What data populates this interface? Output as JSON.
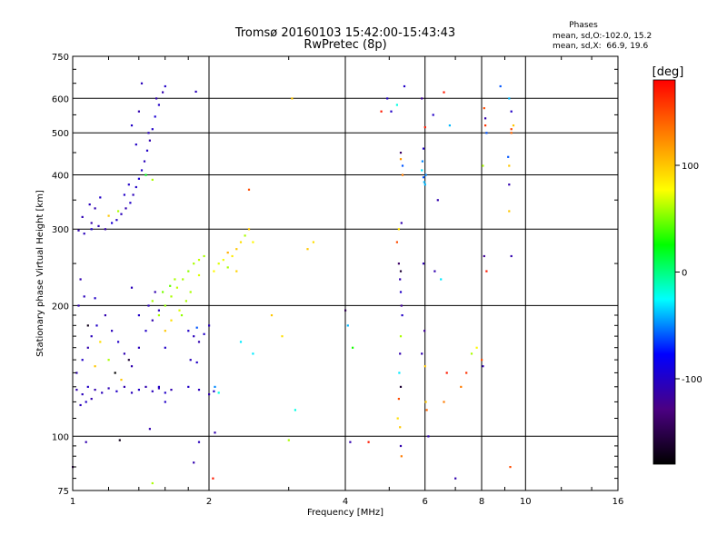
{
  "header": {
    "title_line1": "Tromsø 20160103 15:42:00-15:43:43",
    "title_line2": "RwPretec (8p)"
  },
  "stats": {
    "heading": "Phases",
    "line1": "mean, sd,O:-102.0, 15.2",
    "line2": "mean, sd,X:  66.9, 19.6"
  },
  "colorbar": {
    "unit_label": "[deg]",
    "ticks": [
      {
        "value": 100,
        "label": "100"
      },
      {
        "value": 0,
        "label": "0"
      },
      {
        "value": -100,
        "label": "-100"
      }
    ],
    "range": [
      -180,
      180
    ],
    "colors": [
      "#000000",
      "#4b0082",
      "#0000ff",
      "#00ffff",
      "#00ff00",
      "#ffff00",
      "#ff8000",
      "#ff0000"
    ]
  },
  "chart_data": {
    "type": "scatter",
    "xlabel": "Frequency [MHz]",
    "ylabel": "Stationary phase Virtual Height [km]",
    "xscale": "log",
    "yscale": "log",
    "xlim": [
      1,
      16
    ],
    "ylim": [
      75,
      750
    ],
    "xticks": [
      1,
      2,
      4,
      6,
      8,
      10,
      16
    ],
    "xtick_labels": [
      "1",
      "2",
      "4",
      "6",
      "8",
      "10",
      "16"
    ],
    "yticks": [
      75,
      100,
      200,
      300,
      400,
      500,
      600,
      750
    ],
    "ytick_labels": [
      "75",
      "100",
      "200",
      "300",
      "400",
      "500",
      "600",
      "750"
    ],
    "grid": true,
    "points": [
      [
        1.03,
        298,
        -110
      ],
      [
        1.06,
        293,
        -105
      ],
      [
        1.1,
        300,
        -100
      ],
      [
        1.14,
        305,
        -108
      ],
      [
        1.18,
        300,
        -112
      ],
      [
        1.22,
        310,
        -95
      ],
      [
        1.25,
        315,
        -100
      ],
      [
        1.28,
        325,
        -105
      ],
      [
        1.31,
        335,
        -110
      ],
      [
        1.34,
        345,
        -100
      ],
      [
        1.36,
        360,
        -105
      ],
      [
        1.38,
        375,
        -100
      ],
      [
        1.4,
        392,
        -95
      ],
      [
        1.42,
        410,
        -100
      ],
      [
        1.44,
        430,
        -105
      ],
      [
        1.46,
        455,
        -100
      ],
      [
        1.48,
        480,
        -110
      ],
      [
        1.5,
        510,
        -100
      ],
      [
        1.52,
        545,
        -95
      ],
      [
        1.55,
        580,
        -100
      ],
      [
        1.58,
        620,
        -110
      ],
      [
        1.42,
        650,
        -105
      ],
      [
        1.35,
        520,
        -100
      ],
      [
        1.38,
        470,
        -100
      ],
      [
        1.45,
        400,
        20
      ],
      [
        1.5,
        390,
        60
      ],
      [
        1.12,
        335,
        -110
      ],
      [
        1.15,
        355,
        -100
      ],
      [
        1.09,
        342,
        -105
      ],
      [
        1.2,
        322,
        100
      ],
      [
        1.26,
        330,
        60
      ],
      [
        1.05,
        320,
        -108
      ],
      [
        1.1,
        310,
        -112
      ],
      [
        1.3,
        360,
        -100
      ],
      [
        1.33,
        380,
        -100
      ],
      [
        1.47,
        500,
        -105
      ],
      [
        1.53,
        600,
        -110
      ],
      [
        1.6,
        640,
        -100
      ],
      [
        1.87,
        622,
        -105
      ],
      [
        1.4,
        560,
        -110
      ],
      [
        1.02,
        128,
        -110
      ],
      [
        1.05,
        125,
        -105
      ],
      [
        1.08,
        130,
        -100
      ],
      [
        1.12,
        128,
        -110
      ],
      [
        1.16,
        126,
        -105
      ],
      [
        1.2,
        129,
        -108
      ],
      [
        1.25,
        127,
        -100
      ],
      [
        1.3,
        130,
        -110
      ],
      [
        1.35,
        126,
        -105
      ],
      [
        1.4,
        128,
        -100
      ],
      [
        1.45,
        130,
        -110
      ],
      [
        1.5,
        127,
        -105
      ],
      [
        1.55,
        129,
        -108
      ],
      [
        1.6,
        126,
        -100
      ],
      [
        1.65,
        128,
        -110
      ],
      [
        1.04,
        118,
        -105
      ],
      [
        1.07,
        120,
        -100
      ],
      [
        1.1,
        122,
        -110
      ],
      [
        1.02,
        140,
        -108
      ],
      [
        1.05,
        150,
        -100
      ],
      [
        1.08,
        160,
        -110
      ],
      [
        1.1,
        170,
        -105
      ],
      [
        1.13,
        180,
        -100
      ],
      [
        1.18,
        190,
        -110
      ],
      [
        1.22,
        175,
        -105
      ],
      [
        1.26,
        165,
        -100
      ],
      [
        1.3,
        155,
        -108
      ],
      [
        1.35,
        145,
        -110
      ],
      [
        1.4,
        160,
        -105
      ],
      [
        1.45,
        175,
        -100
      ],
      [
        1.5,
        185,
        -110
      ],
      [
        1.55,
        195,
        -105
      ],
      [
        1.6,
        160,
        -100
      ],
      [
        1.03,
        200,
        -110
      ],
      [
        1.06,
        210,
        -105
      ],
      [
        1.12,
        145,
        100
      ],
      [
        1.2,
        150,
        60
      ],
      [
        1.28,
        135,
        100
      ],
      [
        1.15,
        165,
        90
      ],
      [
        1.24,
        140,
        -180
      ],
      [
        1.33,
        150,
        -160
      ],
      [
        1.08,
        180,
        -170
      ],
      [
        1.4,
        190,
        -100
      ],
      [
        1.47,
        200,
        -105
      ],
      [
        1.52,
        215,
        -110
      ],
      [
        1.04,
        230,
        -110
      ],
      [
        1.12,
        208,
        -100
      ],
      [
        1.35,
        220,
        -105
      ],
      [
        1.6,
        120,
        -100
      ],
      [
        1.55,
        190,
        60
      ],
      [
        1.6,
        200,
        55
      ],
      [
        1.65,
        210,
        60
      ],
      [
        1.7,
        220,
        65
      ],
      [
        1.75,
        230,
        60
      ],
      [
        1.8,
        240,
        55
      ],
      [
        1.85,
        250,
        60
      ],
      [
        1.9,
        255,
        65
      ],
      [
        1.95,
        260,
        60
      ],
      [
        1.65,
        185,
        90
      ],
      [
        1.72,
        195,
        70
      ],
      [
        1.78,
        205,
        60
      ],
      [
        1.68,
        230,
        60
      ],
      [
        1.6,
        175,
        100
      ],
      [
        1.74,
        190,
        55
      ],
      [
        1.5,
        205,
        60
      ],
      [
        1.58,
        215,
        50
      ],
      [
        1.82,
        215,
        60
      ],
      [
        1.9,
        235,
        70
      ],
      [
        1.64,
        222,
        45
      ],
      [
        1.8,
        175,
        -100
      ],
      [
        1.85,
        170,
        -105
      ],
      [
        1.9,
        165,
        -110
      ],
      [
        1.95,
        172,
        -100
      ],
      [
        1.82,
        150,
        -105
      ],
      [
        1.88,
        148,
        -100
      ],
      [
        1.8,
        130,
        -100
      ],
      [
        1.9,
        128,
        -105
      ],
      [
        2.0,
        125,
        -110
      ],
      [
        2.05,
        127,
        -100
      ],
      [
        2.1,
        126,
        -20
      ],
      [
        2.06,
        130,
        -50
      ],
      [
        1.88,
        178,
        -60
      ],
      [
        2.0,
        180,
        -105
      ],
      [
        2.05,
        240,
        80
      ],
      [
        2.1,
        250,
        70
      ],
      [
        2.15,
        255,
        75
      ],
      [
        2.2,
        245,
        60
      ],
      [
        2.25,
        260,
        85
      ],
      [
        2.3,
        270,
        100
      ],
      [
        2.35,
        280,
        90
      ],
      [
        2.4,
        290,
        60
      ],
      [
        2.45,
        300,
        100
      ],
      [
        2.5,
        280,
        80
      ],
      [
        2.3,
        240,
        95
      ],
      [
        2.2,
        265,
        110
      ],
      [
        2.45,
        370,
        150
      ],
      [
        2.75,
        190,
        100
      ],
      [
        2.9,
        170,
        90
      ],
      [
        3.05,
        600,
        100
      ],
      [
        3.4,
        280,
        90
      ],
      [
        3.3,
        270,
        100
      ],
      [
        2.35,
        165,
        -30
      ],
      [
        2.5,
        155,
        -30
      ],
      [
        3.1,
        115,
        -20
      ],
      [
        3.0,
        98,
        60
      ],
      [
        1.0,
        85,
        -160
      ],
      [
        1.07,
        97,
        -110
      ],
      [
        1.27,
        98,
        -170
      ],
      [
        1.9,
        97,
        -105
      ],
      [
        2.04,
        80,
        170
      ],
      [
        1.85,
        87,
        -110
      ],
      [
        1.48,
        104,
        -110
      ],
      [
        1.5,
        78,
        60
      ],
      [
        2.06,
        102,
        -110
      ],
      [
        1.55,
        130,
        -100
      ],
      [
        4.0,
        195,
        -150
      ],
      [
        4.05,
        180,
        -40
      ],
      [
        4.1,
        97,
        -110
      ],
      [
        4.15,
        160,
        30
      ],
      [
        4.5,
        97,
        170
      ],
      [
        4.8,
        560,
        170
      ],
      [
        4.95,
        600,
        -100
      ],
      [
        5.05,
        560,
        -100
      ],
      [
        5.2,
        580,
        -20
      ],
      [
        5.3,
        450,
        -140
      ],
      [
        5.3,
        435,
        120
      ],
      [
        5.32,
        310,
        -110
      ],
      [
        5.35,
        420,
        -60
      ],
      [
        5.35,
        400,
        130
      ],
      [
        5.25,
        300,
        90
      ],
      [
        5.2,
        280,
        150
      ],
      [
        5.25,
        250,
        -140
      ],
      [
        5.3,
        240,
        -160
      ],
      [
        5.28,
        230,
        -110
      ],
      [
        5.3,
        215,
        -100
      ],
      [
        5.32,
        200,
        -120
      ],
      [
        5.34,
        190,
        -100
      ],
      [
        5.3,
        170,
        60
      ],
      [
        5.28,
        155,
        -110
      ],
      [
        5.26,
        140,
        -30
      ],
      [
        5.3,
        130,
        -160
      ],
      [
        5.22,
        110,
        90
      ],
      [
        5.28,
        105,
        100
      ],
      [
        5.25,
        122,
        150
      ],
      [
        5.3,
        95,
        -110
      ],
      [
        5.32,
        90,
        130
      ],
      [
        5.4,
        640,
        -100
      ],
      [
        5.9,
        410,
        -30
      ],
      [
        5.95,
        395,
        -60
      ],
      [
        6.0,
        380,
        -40
      ],
      [
        5.97,
        385,
        -40
      ],
      [
        6.02,
        400,
        -50
      ],
      [
        5.92,
        430,
        -50
      ],
      [
        5.95,
        460,
        -100
      ],
      [
        6.0,
        515,
        170
      ],
      [
        5.9,
        600,
        -120
      ],
      [
        5.95,
        250,
        -110
      ],
      [
        5.98,
        175,
        -120
      ],
      [
        5.9,
        155,
        -110
      ],
      [
        6.0,
        145,
        100
      ],
      [
        6.05,
        115,
        140
      ],
      [
        6.1,
        100,
        -110
      ],
      [
        6.02,
        120,
        100
      ],
      [
        6.3,
        240,
        -110
      ],
      [
        6.25,
        550,
        -100
      ],
      [
        6.4,
        350,
        -110
      ],
      [
        6.5,
        230,
        -30
      ],
      [
        6.6,
        620,
        170
      ],
      [
        6.8,
        520,
        -40
      ],
      [
        6.7,
        140,
        170
      ],
      [
        6.6,
        120,
        130
      ],
      [
        7.0,
        80,
        -110
      ],
      [
        7.2,
        130,
        130
      ],
      [
        7.4,
        140,
        160
      ],
      [
        7.6,
        155,
        60
      ],
      [
        7.8,
        160,
        80
      ],
      [
        8.1,
        570,
        150
      ],
      [
        8.15,
        540,
        -110
      ],
      [
        8.15,
        520,
        160
      ],
      [
        8.2,
        500,
        -60
      ],
      [
        8.05,
        420,
        60
      ],
      [
        8.1,
        260,
        -120
      ],
      [
        8.2,
        240,
        170
      ],
      [
        8.0,
        150,
        150
      ],
      [
        8.05,
        145,
        -110
      ],
      [
        8.8,
        640,
        -60
      ],
      [
        9.2,
        600,
        -40
      ],
      [
        9.3,
        560,
        -100
      ],
      [
        9.4,
        520,
        100
      ],
      [
        9.3,
        510,
        150
      ],
      [
        9.3,
        500,
        140
      ],
      [
        9.15,
        440,
        -60
      ],
      [
        9.2,
        420,
        100
      ],
      [
        9.2,
        380,
        -110
      ],
      [
        9.2,
        330,
        100
      ],
      [
        9.3,
        260,
        -110
      ],
      [
        9.25,
        85,
        150
      ]
    ]
  }
}
